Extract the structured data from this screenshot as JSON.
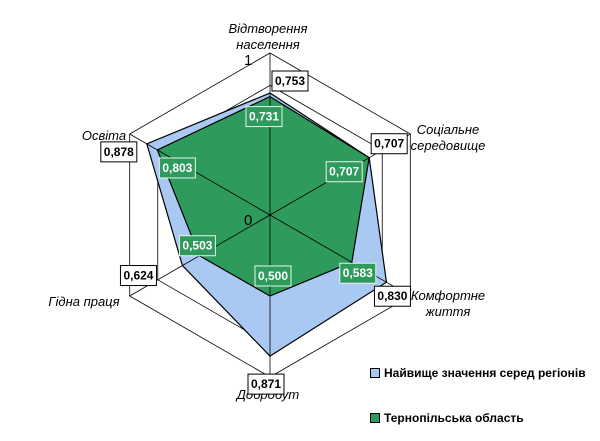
{
  "chart_data": {
    "type": "radar",
    "axes": [
      "Відтворення населення",
      "Соціальне середовище",
      "Комфортне життя",
      "Добробут",
      "Гідна праця",
      "Освіта"
    ],
    "axis_label_lines": [
      [
        "Відтворення",
        "населення"
      ],
      [
        "Соціальне",
        "середовище"
      ],
      [
        "Комфортне",
        "життя"
      ],
      [
        "Добробут"
      ],
      [
        "Гідна праця"
      ],
      [
        "Освіта"
      ]
    ],
    "range": [
      0,
      1
    ],
    "tick_labels": [
      "0",
      "1"
    ],
    "grid_levels": 5,
    "series": [
      {
        "name": "Найвище значення серед регіонів",
        "color": "#a9c8f2",
        "values": [
          0.753,
          0.707,
          0.83,
          0.871,
          0.624,
          0.878
        ],
        "labels": [
          "0,753",
          "0,707",
          "0,830",
          "0,871",
          "0,624",
          "0,878"
        ]
      },
      {
        "name": "Тернопільська область",
        "color": "#2e9a5c",
        "values": [
          0.731,
          0.707,
          0.583,
          0.5,
          0.503,
          0.803
        ],
        "labels": [
          "0,731",
          "0,707",
          "0,583",
          "0,500",
          "0,503",
          "0,803"
        ]
      }
    ],
    "legend_position": "bottom-right"
  }
}
